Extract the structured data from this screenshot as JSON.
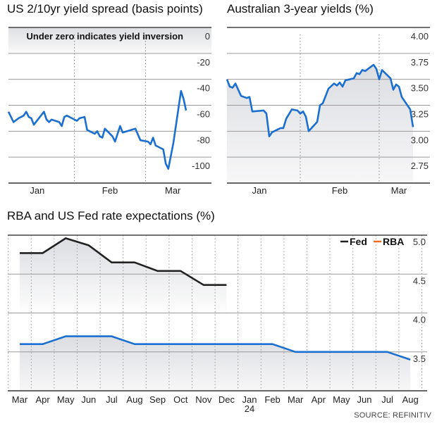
{
  "colors": {
    "rba_line": "#1a6fd1",
    "fed_line": "#222222",
    "rba_legend": "#f26b21",
    "grid": "#9a9a9a",
    "axis": "#333333",
    "fill": "#dcdde1"
  },
  "source": "SOURCE: REFINITIV",
  "chart_data": [
    {
      "type": "line",
      "title": "US 2/10yr yield spread (basis points)",
      "annotation": "Under zero indicates yield inversion",
      "xlim": [
        "2023-01-06",
        "2023-03-27"
      ],
      "ylim": [
        -120,
        0
      ],
      "yticks": [
        0,
        -20,
        -40,
        -60,
        -80,
        -100
      ],
      "ytick_labels": [
        "0",
        "-20",
        "-40",
        "-60",
        "-80",
        "-100"
      ],
      "xtick_labels": [
        "Jan",
        "Feb",
        "Mar"
      ],
      "grid": true,
      "series": [
        {
          "color": "#1a6fd1",
          "points": [
            [
              "2023-01-06",
              -65
            ],
            [
              "2023-01-08",
              -73
            ],
            [
              "2023-01-10",
              -70
            ],
            [
              "2023-01-12",
              -68
            ],
            [
              "2023-01-13",
              -65
            ],
            [
              "2023-01-14",
              -69
            ],
            [
              "2023-01-15",
              -70
            ],
            [
              "2023-01-16",
              -75
            ],
            [
              "2023-01-20",
              -65
            ],
            [
              "2023-01-21",
              -71
            ],
            [
              "2023-01-22",
              -73
            ],
            [
              "2023-01-23",
              -71
            ],
            [
              "2023-01-26",
              -73
            ],
            [
              "2023-01-27",
              -76
            ],
            [
              "2023-01-28",
              -69
            ],
            [
              "2023-01-29",
              -68
            ],
            [
              "2023-01-31",
              -70
            ],
            [
              "2023-02-02",
              -72
            ],
            [
              "2023-02-03",
              -70
            ],
            [
              "2023-02-05",
              -69
            ],
            [
              "2023-02-06",
              -79
            ],
            [
              "2023-02-09",
              -82
            ],
            [
              "2023-02-10",
              -80
            ],
            [
              "2023-02-11",
              -84
            ],
            [
              "2023-02-12",
              -85
            ],
            [
              "2023-02-13",
              -78
            ],
            [
              "2023-02-16",
              -84
            ],
            [
              "2023-02-17",
              -88
            ],
            [
              "2023-02-19",
              -76
            ],
            [
              "2023-02-20",
              -81
            ],
            [
              "2023-02-25",
              -78
            ],
            [
              "2023-02-27",
              -87
            ],
            [
              "2023-03-02",
              -88
            ],
            [
              "2023-03-03",
              -90
            ],
            [
              "2023-03-04",
              -85
            ],
            [
              "2023-03-05",
              -91
            ],
            [
              "2023-03-08",
              -94
            ],
            [
              "2023-03-09",
              -105
            ],
            [
              "2023-03-10",
              -109
            ],
            [
              "2023-03-12",
              -89
            ],
            [
              "2023-03-15",
              -49
            ],
            [
              "2023-03-16",
              -55
            ],
            [
              "2023-03-17",
              -64
            ]
          ]
        }
      ]
    },
    {
      "type": "area",
      "title": "Australian 3-year yields (%)",
      "xlim": [
        "2023-01-06",
        "2023-03-19"
      ],
      "ylim": [
        2.5,
        4.0
      ],
      "yticks": [
        4.0,
        3.75,
        3.5,
        3.25,
        3.0,
        2.75
      ],
      "ytick_labels": [
        "4.00",
        "3.75",
        "3.50",
        "3.25",
        "3.00",
        "2.75"
      ],
      "xtick_labels": [
        "Jan",
        "Feb",
        "Mar"
      ],
      "grid": true,
      "series": [
        {
          "color": "#1a6fd1",
          "points": [
            [
              "2023-01-06",
              3.5
            ],
            [
              "2023-01-07",
              3.43
            ],
            [
              "2023-01-08",
              3.42
            ],
            [
              "2023-01-09",
              3.46
            ],
            [
              "2023-01-11",
              3.34
            ],
            [
              "2023-01-13",
              3.32
            ],
            [
              "2023-01-14",
              3.33
            ],
            [
              "2023-01-15",
              3.19
            ],
            [
              "2023-01-19",
              3.2
            ],
            [
              "2023-01-20",
              3.17
            ],
            [
              "2023-01-21",
              2.95
            ],
            [
              "2023-01-22",
              2.99
            ],
            [
              "2023-01-25",
              3.03
            ],
            [
              "2023-01-26",
              3.03
            ],
            [
              "2023-01-27",
              3.12
            ],
            [
              "2023-01-29",
              3.21
            ],
            [
              "2023-01-31",
              3.2
            ],
            [
              "2023-02-01",
              3.17
            ],
            [
              "2023-02-02",
              3.19
            ],
            [
              "2023-02-03",
              3.14
            ],
            [
              "2023-02-04",
              3.0
            ],
            [
              "2023-02-07",
              3.09
            ],
            [
              "2023-02-08",
              3.25
            ],
            [
              "2023-02-09",
              3.27
            ],
            [
              "2023-02-11",
              3.41
            ],
            [
              "2023-02-13",
              3.46
            ],
            [
              "2023-02-14",
              3.44
            ],
            [
              "2023-02-15",
              3.47
            ],
            [
              "2023-02-16",
              3.43
            ],
            [
              "2023-02-17",
              3.49
            ],
            [
              "2023-02-20",
              3.51
            ],
            [
              "2023-02-21",
              3.56
            ],
            [
              "2023-02-22",
              3.55
            ],
            [
              "2023-02-23",
              3.59
            ],
            [
              "2023-02-24",
              3.58
            ],
            [
              "2023-02-27",
              3.64
            ],
            [
              "2023-02-28",
              3.6
            ],
            [
              "2023-03-01",
              3.5
            ],
            [
              "2023-03-02",
              3.59
            ],
            [
              "2023-03-05",
              3.51
            ],
            [
              "2023-03-06",
              3.4
            ],
            [
              "2023-03-07",
              3.45
            ],
            [
              "2023-03-08",
              3.43
            ],
            [
              "2023-03-09",
              3.33
            ],
            [
              "2023-03-12",
              3.21
            ],
            [
              "2023-03-13",
              3.04
            ]
          ]
        }
      ]
    },
    {
      "type": "area",
      "title": "RBA and US Fed rate expectations (%)",
      "categories": [
        "Mar",
        "Apr",
        "May",
        "Jun",
        "Jul",
        "Aug",
        "Sep",
        "Oct",
        "Nov",
        "Dec",
        "Jan",
        "Feb",
        "Mar",
        "Apr",
        "May",
        "Jun",
        "Jul",
        "Aug"
      ],
      "year_label": "24",
      "ylim": [
        3.0,
        5.0
      ],
      "yticks": [
        5.0,
        4.5,
        4.0,
        3.5
      ],
      "ytick_labels": [
        "5.0",
        "4.5",
        "4.0",
        "3.5"
      ],
      "grid": true,
      "legend": {
        "placement": "top-right",
        "entries": [
          {
            "name": "Fed",
            "color": "#222222"
          },
          {
            "name": "RBA",
            "color": "#f26b21"
          }
        ]
      },
      "series": [
        {
          "name": "Fed",
          "color": "#222222",
          "values": [
            4.77,
            4.77,
            4.96,
            4.87,
            4.65,
            4.65,
            4.54,
            4.54,
            4.36,
            4.36,
            null,
            null,
            null,
            null,
            null,
            null,
            null,
            null
          ]
        },
        {
          "name": "RBA",
          "color": "#1a6fd1",
          "values": [
            3.6,
            3.6,
            3.7,
            3.7,
            3.7,
            3.6,
            3.6,
            3.6,
            3.6,
            3.6,
            3.6,
            3.6,
            3.5,
            3.5,
            3.5,
            3.5,
            3.5,
            3.4
          ]
        }
      ]
    }
  ]
}
